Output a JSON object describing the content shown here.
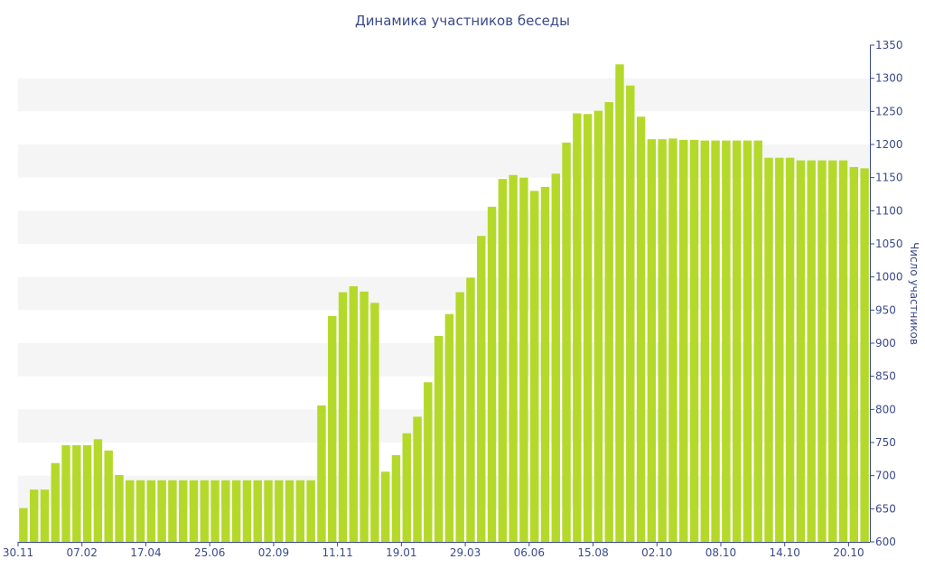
{
  "chart_data": {
    "type": "bar",
    "title": "Динамика участников беседы",
    "ylabel": "Число участников",
    "xlabel": "",
    "ylim": [
      600,
      1350
    ],
    "yticks": [
      600,
      650,
      700,
      750,
      800,
      850,
      900,
      950,
      1000,
      1050,
      1100,
      1150,
      1200,
      1250,
      1300,
      1350
    ],
    "y_axis_position": "right",
    "grid": "alternating horizontal bands",
    "legend": "none",
    "x_tick_labels": [
      {
        "label": "30.11",
        "index": 0
      },
      {
        "label": "07.02",
        "index": 6
      },
      {
        "label": "17.04",
        "index": 12
      },
      {
        "label": "25.06",
        "index": 18
      },
      {
        "label": "02.09",
        "index": 24
      },
      {
        "label": "11.11",
        "index": 30
      },
      {
        "label": "19.01",
        "index": 36
      },
      {
        "label": "29.03",
        "index": 42
      },
      {
        "label": "06.06",
        "index": 48
      },
      {
        "label": "15.08",
        "index": 54
      },
      {
        "label": "02.10",
        "index": 60
      },
      {
        "label": "08.10",
        "index": 66
      },
      {
        "label": "14.10",
        "index": 72
      },
      {
        "label": "20.10",
        "index": 78
      }
    ],
    "values": [
      651,
      679,
      679,
      719,
      746,
      746,
      746,
      755,
      738,
      701,
      693,
      693,
      693,
      693,
      693,
      693,
      693,
      693,
      693,
      693,
      693,
      693,
      693,
      693,
      693,
      693,
      693,
      693,
      806,
      941,
      977,
      986,
      978,
      961,
      706,
      731,
      764,
      789,
      841,
      911,
      944,
      977,
      999,
      1062,
      1106,
      1148,
      1154,
      1150,
      1130,
      1136,
      1156,
      1203,
      1247,
      1246,
      1251,
      1264,
      1321,
      1289,
      1242,
      1208,
      1208,
      1209,
      1207,
      1207,
      1206,
      1206,
      1206,
      1206,
      1206,
      1206,
      1180,
      1180,
      1180,
      1176,
      1176,
      1176,
      1176,
      1176,
      1166,
      1164
    ],
    "colors": {
      "bar": "#b5d92a",
      "text": "#3b4a8a",
      "axis": "#3b4a8a",
      "band": "#f5f5f5"
    }
  }
}
